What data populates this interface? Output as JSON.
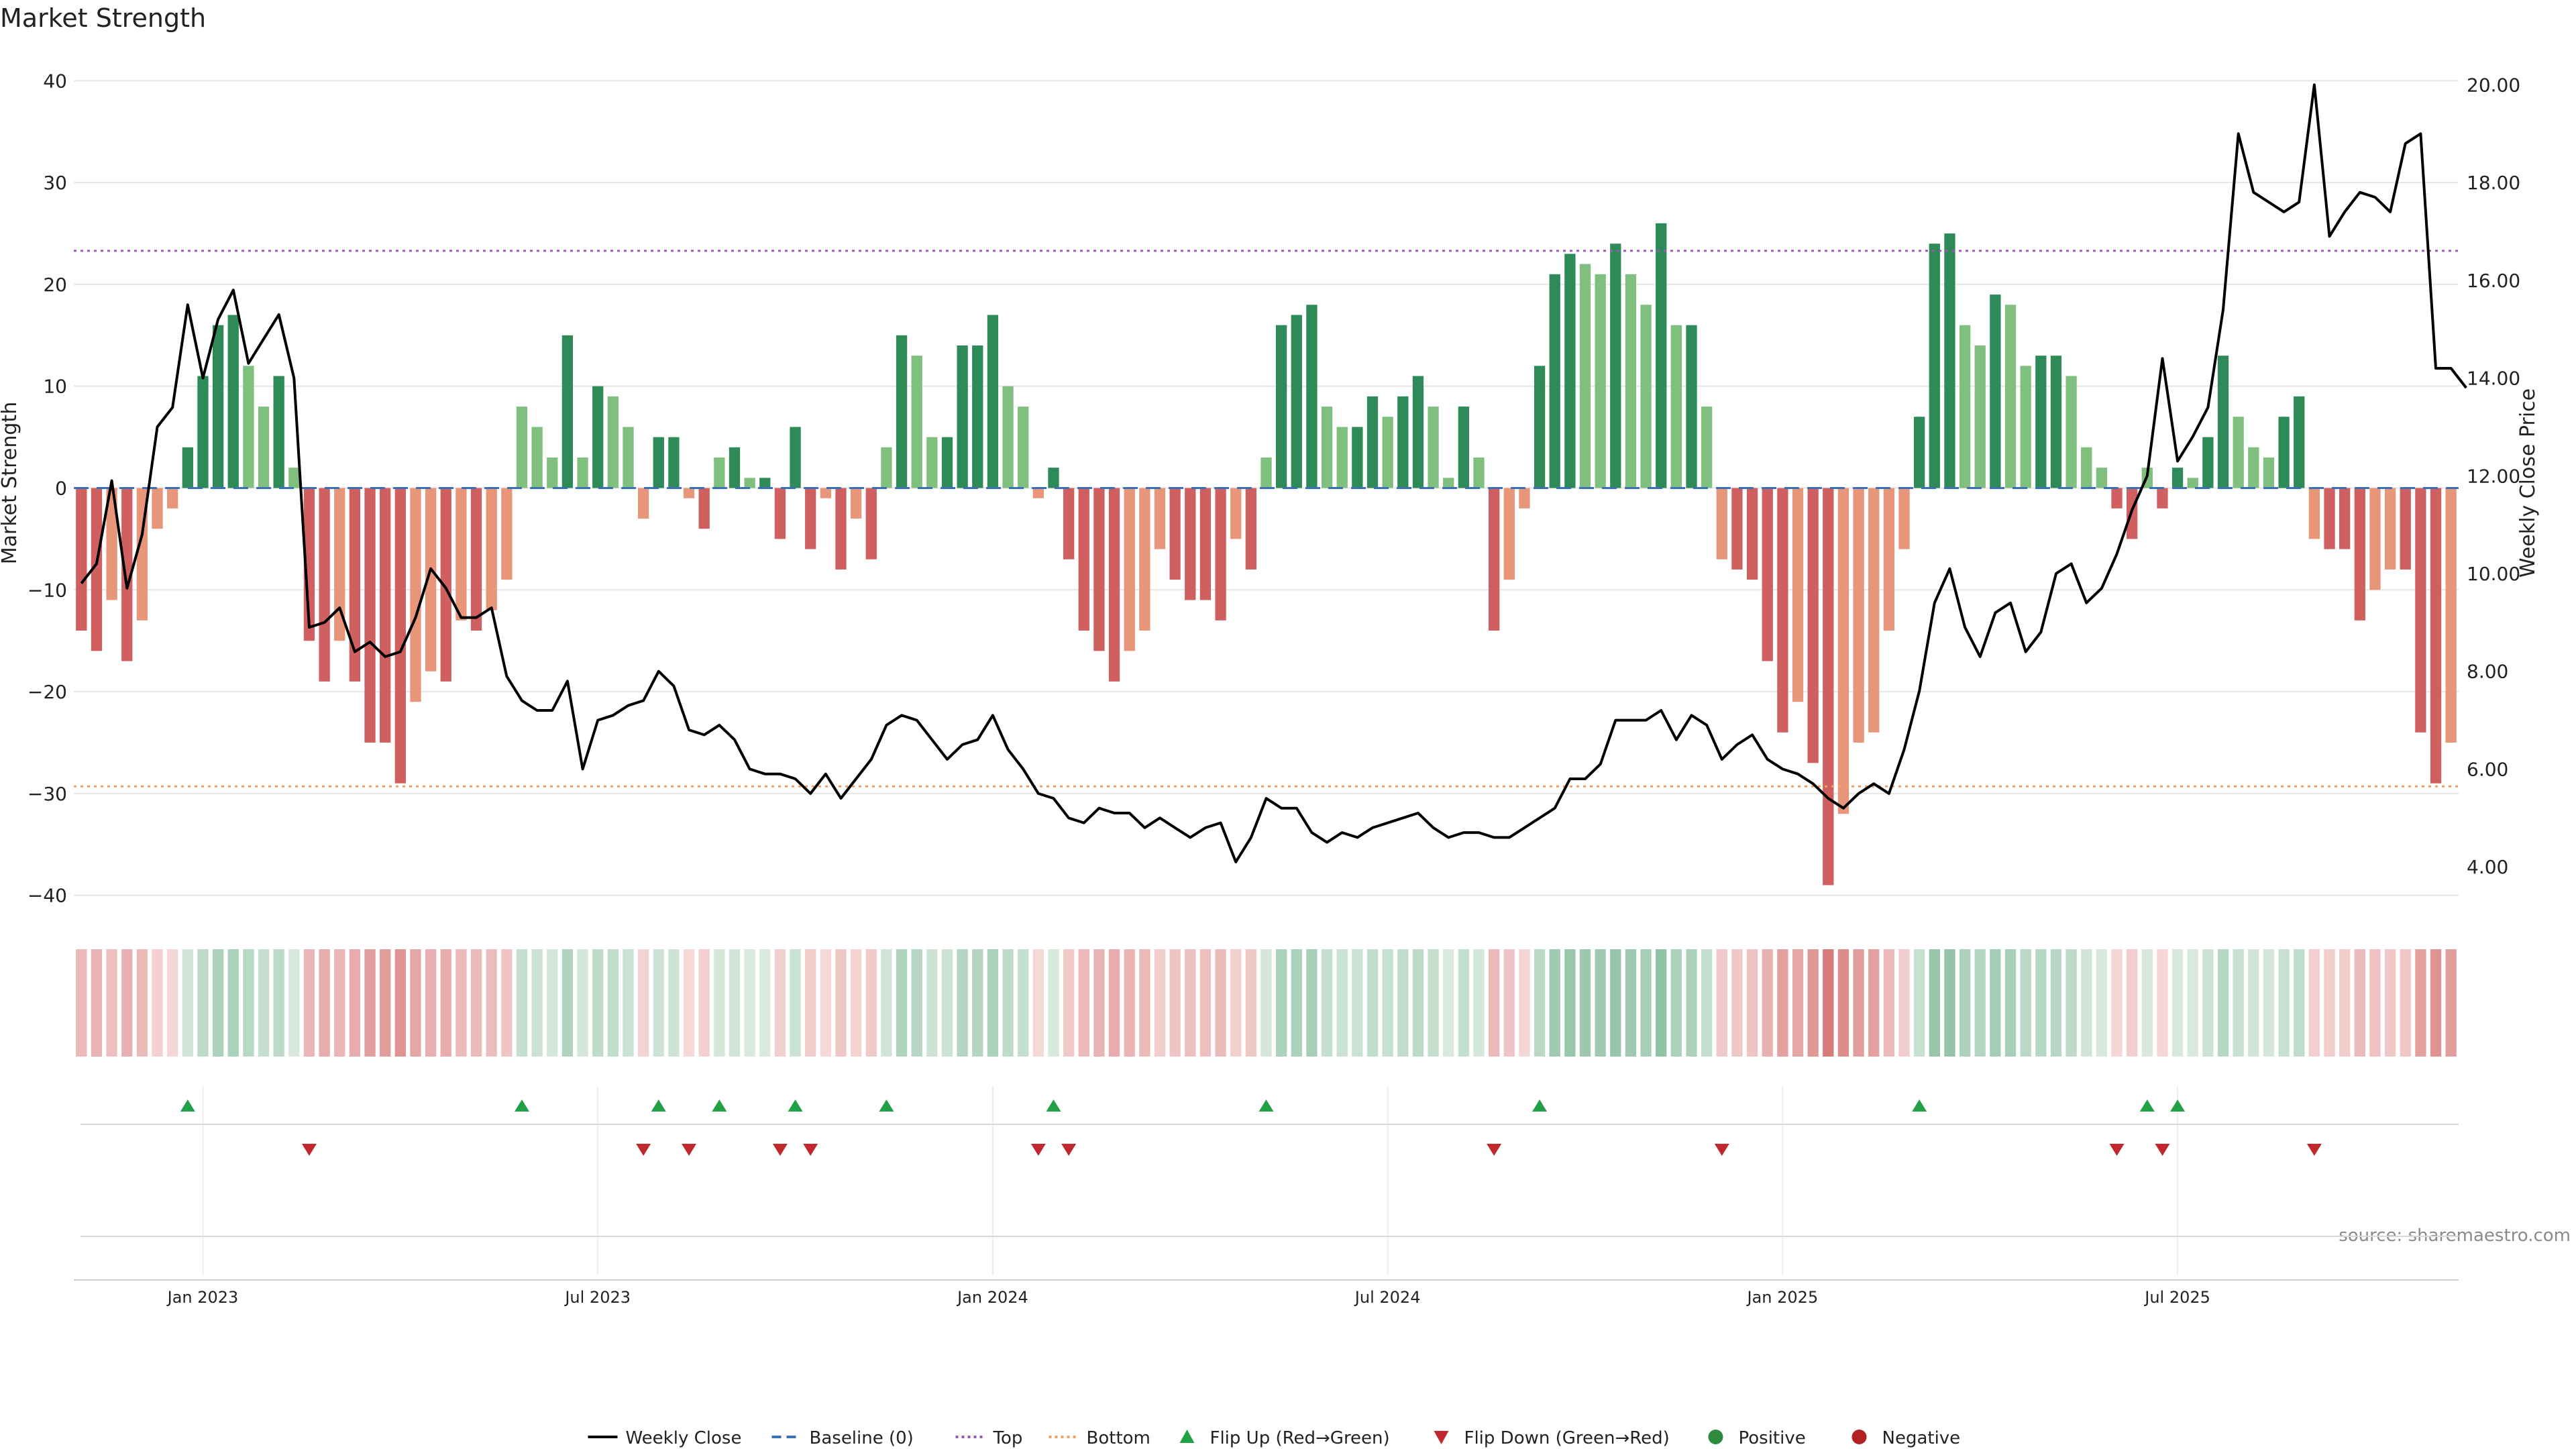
{
  "chart_data": {
    "type": "bar",
    "title": "Market Strength",
    "ylabel_left": "Market Strength",
    "ylabel_right": "Weekly Close Price",
    "source": "source: sharemaestro.com",
    "left_axis": {
      "ylim": [
        -42,
        42
      ],
      "ticks": [
        40,
        30,
        20,
        10,
        0,
        -10,
        -20,
        -30,
        -40
      ]
    },
    "right_axis": {
      "ylim": [
        3.0,
        20.5
      ],
      "ticks": [
        "20.00",
        "18.00",
        "16.00",
        "14.00",
        "12.00",
        "10.00",
        "8.00",
        "6.00",
        "4.00"
      ]
    },
    "x_ticks": [
      "Jan 2023",
      "Jul 2023",
      "Jan 2024",
      "Jul 2024",
      "Jan 2025",
      "Jul 2025"
    ],
    "reference_lines": {
      "baseline": 0,
      "top": 23.3,
      "bottom": -29.3
    },
    "strength": [
      -14,
      -16,
      -11,
      -17,
      -13,
      -4,
      -2,
      4,
      11,
      16,
      17,
      12,
      8,
      11,
      2,
      -15,
      -19,
      -15,
      -19,
      -25,
      -25,
      -29,
      -21,
      -18,
      -19,
      -13,
      -14,
      -12,
      -9,
      8,
      6,
      3,
      15,
      3,
      10,
      9,
      6,
      -3,
      5,
      5,
      -1,
      -4,
      3,
      4,
      1,
      1,
      -5,
      6,
      -6,
      -1,
      -8,
      -3,
      -7,
      4,
      15,
      13,
      5,
      5,
      14,
      14,
      17,
      10,
      8,
      -1,
      2,
      -7,
      -14,
      -16,
      -19,
      -16,
      -14,
      -6,
      -9,
      -11,
      -11,
      -13,
      -5,
      -8,
      3,
      16,
      17,
      18,
      8,
      6,
      6,
      9,
      7,
      9,
      11,
      8,
      1,
      8,
      3,
      -14,
      -9,
      -2,
      12,
      21,
      23,
      22,
      21,
      24,
      21,
      18,
      26,
      16,
      16,
      8,
      -7,
      -8,
      -9,
      -17,
      -24,
      -21,
      -27,
      -39,
      -32,
      -25,
      -24,
      -14,
      -6,
      7,
      24,
      25,
      16,
      14,
      19,
      18,
      12,
      13,
      13,
      11,
      4,
      2,
      -2,
      -5,
      2,
      -2,
      2,
      1,
      5,
      13,
      7,
      4,
      3,
      7,
      9,
      -5,
      -6,
      -6,
      -13,
      -10,
      -8,
      -8,
      -24,
      -29,
      -25
    ],
    "weekly_close": [
      9.8,
      10.2,
      11.9,
      9.7,
      10.8,
      13,
      13.4,
      15.5,
      14,
      15.2,
      15.8,
      14.3,
      14.8,
      15.3,
      14,
      8.9,
      9,
      9.3,
      8.4,
      8.6,
      8.3,
      8.4,
      9.1,
      10.1,
      9.7,
      9.1,
      9.1,
      9.3,
      7.9,
      7.4,
      7.2,
      7.2,
      7.8,
      6,
      7,
      7.1,
      7.3,
      7.4,
      8,
      7.7,
      6.8,
      6.7,
      6.9,
      6.6,
      6,
      5.9,
      5.9,
      5.8,
      5.5,
      5.9,
      5.4,
      5.8,
      6.2,
      6.9,
      7.1,
      7,
      6.6,
      6.2,
      6.5,
      6.6,
      7.1,
      6.4,
      6,
      5.5,
      5.4,
      5,
      4.9,
      5.2,
      5.1,
      5.1,
      4.8,
      5,
      4.8,
      4.6,
      4.8,
      4.9,
      4.1,
      4.6,
      5.4,
      5.2,
      5.2,
      4.7,
      4.5,
      4.7,
      4.6,
      4.8,
      4.9,
      5,
      5.1,
      4.8,
      4.6,
      4.7,
      4.7,
      4.6,
      4.6,
      4.8,
      5,
      5.2,
      5.8,
      5.8,
      6.1,
      7,
      7,
      7,
      7.2,
      6.6,
      7.1,
      6.9,
      6.2,
      6.5,
      6.7,
      6.2,
      6,
      5.9,
      5.7,
      5.4,
      5.2,
      5.5,
      5.7,
      5.5,
      6.4,
      7.6,
      9.4,
      10.1,
      8.9,
      8.3,
      9.2,
      9.4,
      8.4,
      8.8,
      10,
      10.2,
      9.4,
      9.7,
      10.4,
      11.3,
      12,
      14.4,
      12.3,
      12.8,
      13.4,
      15.4,
      19,
      17.8,
      17.6,
      17.4,
      17.6,
      20,
      16.9,
      17.4,
      17.8,
      17.7,
      17.4,
      18.8,
      19,
      14.2,
      14.2,
      13.8
    ]
  },
  "legend": [
    {
      "label": "Weekly Close",
      "marker": "line",
      "color": "#000000"
    },
    {
      "label": "Baseline (0)",
      "marker": "dashed",
      "color": "#3b6fb6"
    },
    {
      "label": "Top",
      "marker": "dotted",
      "color": "#9b59b6"
    },
    {
      "label": "Bottom",
      "marker": "dotted",
      "color": "#f0a060"
    },
    {
      "label": "Flip Up (Red→Green)",
      "marker": "triangle-up",
      "color": "#22a045"
    },
    {
      "label": "Flip Down (Green→Red)",
      "marker": "triangle-down",
      "color": "#c0282d"
    },
    {
      "label": "Positive",
      "marker": "circle",
      "color": "#2e8b3e"
    },
    {
      "label": "Negative",
      "marker": "circle",
      "color": "#b22222"
    }
  ],
  "colors": {
    "pos_strong": "#2e8b57",
    "pos_light": "#80c07f",
    "neg_strong": "#d06060",
    "neg_light": "#e8967a",
    "line": "#000000",
    "grid": "#e6e6e6"
  }
}
